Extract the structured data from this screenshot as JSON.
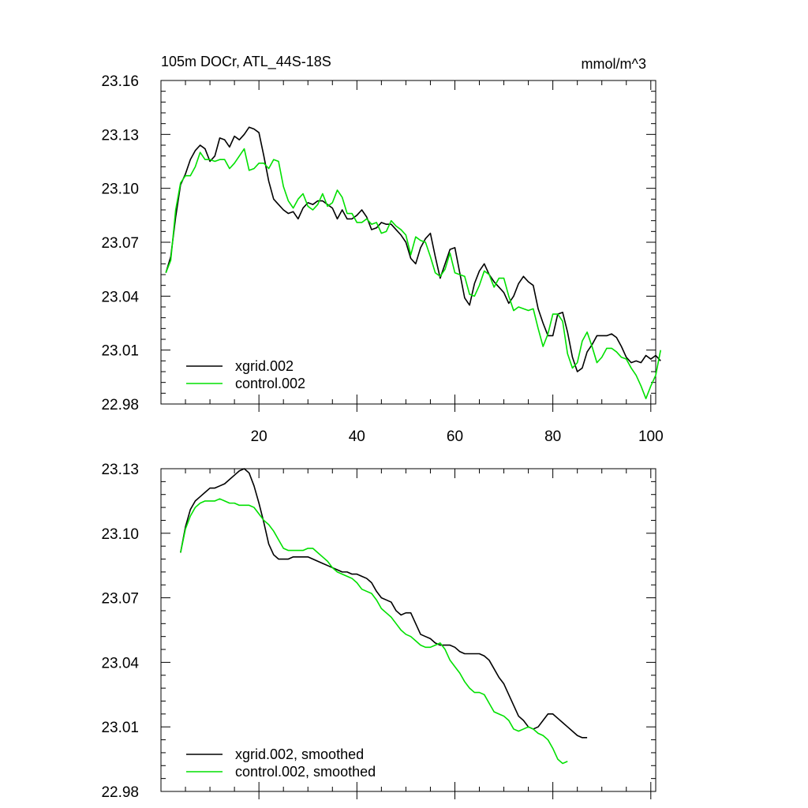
{
  "page_text": {
    "top_title_left": "105m DOCr, ATL_44S-18S",
    "top_title_right": "mmol/m^3"
  },
  "colors": {
    "series_xgrid": "#000000",
    "series_control": "#00e000",
    "axis": "#000000",
    "background": "#ffffff"
  },
  "chart_data": [
    {
      "type": "line",
      "title": "105m DOCr, ATL_44S-18S",
      "units": "mmol/m^3",
      "xlim": [
        0,
        101
      ],
      "ylim": [
        22.98,
        23.16
      ],
      "x_ticks": [
        20,
        40,
        60,
        80,
        100
      ],
      "x_tick_labels": [
        "20",
        "40",
        "60",
        "80",
        "100"
      ],
      "y_ticks": [
        22.98,
        23.01,
        23.04,
        23.07,
        23.1,
        23.13,
        23.16
      ],
      "y_tick_labels": [
        "22.98",
        "23.01",
        "23.04",
        "23.07",
        "23.10",
        "23.13",
        "23.16"
      ],
      "legend_position": "bottom-left",
      "x_start": 1,
      "series": [
        {
          "name": "xgrid.002",
          "color": "#000000",
          "values": [
            23.053,
            23.062,
            23.084,
            23.102,
            23.108,
            23.116,
            23.121,
            23.124,
            23.122,
            23.115,
            23.118,
            23.128,
            23.127,
            23.123,
            23.129,
            23.127,
            23.13,
            23.134,
            23.133,
            23.131,
            23.118,
            23.104,
            23.094,
            23.091,
            23.088,
            23.086,
            23.087,
            23.083,
            23.089,
            23.092,
            23.091,
            23.093,
            23.093,
            23.091,
            23.089,
            23.083,
            23.088,
            23.083,
            23.083,
            23.085,
            23.088,
            23.084,
            23.077,
            23.078,
            23.081,
            23.08,
            23.08,
            23.077,
            23.074,
            23.07,
            23.061,
            23.058,
            23.067,
            23.072,
            23.075,
            23.062,
            23.05,
            23.058,
            23.066,
            23.067,
            23.053,
            23.039,
            23.035,
            23.047,
            23.054,
            23.058,
            23.052,
            23.048,
            23.045,
            23.042,
            23.036,
            23.04,
            23.047,
            23.051,
            23.048,
            23.046,
            23.033,
            23.025,
            23.018,
            23.018,
            23.03,
            23.031,
            23.02,
            23.006,
            22.998,
            23.0,
            23.009,
            23.013,
            23.018,
            23.018,
            23.018,
            23.019,
            23.017,
            23.012,
            23.006,
            23.003,
            23.004,
            23.003,
            23.007,
            23.005,
            23.007,
            23.004
          ]
        },
        {
          "name": "control.002",
          "color": "#00e000",
          "values": [
            23.053,
            23.06,
            23.088,
            23.103,
            23.107,
            23.107,
            23.112,
            23.12,
            23.116,
            23.116,
            23.115,
            23.116,
            23.116,
            23.111,
            23.114,
            23.118,
            23.122,
            23.11,
            23.111,
            23.114,
            23.114,
            23.111,
            23.116,
            23.115,
            23.101,
            23.093,
            23.089,
            23.094,
            23.097,
            23.09,
            23.088,
            23.091,
            23.097,
            23.09,
            23.092,
            23.099,
            23.095,
            23.086,
            23.086,
            23.081,
            23.081,
            23.083,
            23.08,
            23.081,
            23.075,
            23.076,
            23.082,
            23.079,
            23.077,
            23.074,
            23.063,
            23.073,
            23.071,
            23.07,
            23.062,
            23.053,
            23.051,
            23.055,
            23.064,
            23.053,
            23.052,
            23.051,
            23.041,
            23.04,
            23.046,
            23.054,
            23.052,
            23.045,
            23.05,
            23.05,
            23.04,
            23.032,
            23.034,
            23.033,
            23.032,
            23.033,
            23.022,
            23.012,
            23.019,
            23.03,
            23.03,
            23.026,
            23.008,
            23.0,
            23.003,
            23.015,
            23.02,
            23.012,
            23.003,
            23.006,
            23.011,
            23.011,
            23.009,
            23.006,
            23.005,
            23.0,
            22.996,
            22.99,
            22.983,
            22.99,
            22.996,
            23.01
          ]
        }
      ]
    },
    {
      "type": "line",
      "xlim": [
        0,
        101
      ],
      "ylim": [
        22.98,
        23.13
      ],
      "x_ticks": [
        20,
        40,
        60,
        80,
        100
      ],
      "x_tick_labels": [],
      "y_ticks": [
        22.98,
        23.01,
        23.04,
        23.07,
        23.1,
        23.13
      ],
      "y_tick_labels": [
        "22.98",
        "23.01",
        "23.04",
        "23.07",
        "23.10",
        "23.13"
      ],
      "legend_position": "bottom-left",
      "x_start": 4,
      "series": [
        {
          "name": "xgrid.002, smoothed",
          "color": "#000000",
          "values": [
            23.091,
            23.103,
            23.111,
            23.115,
            23.117,
            23.119,
            23.121,
            23.121,
            23.122,
            23.123,
            23.125,
            23.127,
            23.129,
            23.13,
            23.128,
            23.122,
            23.114,
            23.105,
            23.095,
            23.09,
            23.088,
            23.088,
            23.088,
            23.089,
            23.089,
            23.089,
            23.089,
            23.088,
            23.087,
            23.086,
            23.085,
            23.084,
            23.083,
            23.082,
            23.082,
            23.081,
            23.081,
            23.08,
            23.079,
            23.077,
            23.073,
            23.07,
            23.069,
            23.068,
            23.064,
            23.062,
            23.063,
            23.063,
            23.058,
            23.053,
            23.052,
            23.051,
            23.049,
            23.048,
            23.048,
            23.048,
            23.047,
            23.045,
            23.044,
            23.044,
            23.044,
            23.044,
            23.043,
            23.041,
            23.037,
            23.033,
            23.03,
            23.025,
            23.02,
            23.015,
            23.013,
            23.01,
            23.009,
            23.01,
            23.013,
            23.016,
            23.016,
            23.014,
            23.012,
            23.01,
            23.008,
            23.006,
            23.005,
            23.005
          ]
        },
        {
          "name": "control.002, smoothed",
          "color": "#00e000",
          "values": [
            23.091,
            23.102,
            23.108,
            23.112,
            23.114,
            23.115,
            23.115,
            23.115,
            23.116,
            23.115,
            23.114,
            23.114,
            23.113,
            23.113,
            23.113,
            23.112,
            23.109,
            23.106,
            23.104,
            23.101,
            23.097,
            23.093,
            23.092,
            23.092,
            23.092,
            23.092,
            23.093,
            23.093,
            23.091,
            23.089,
            23.087,
            23.084,
            23.082,
            23.081,
            23.08,
            23.079,
            23.077,
            23.074,
            23.073,
            23.072,
            23.069,
            23.065,
            23.063,
            23.061,
            23.058,
            23.055,
            23.053,
            23.052,
            23.05,
            23.048,
            23.047,
            23.047,
            23.048,
            23.049,
            23.046,
            23.041,
            23.038,
            23.035,
            23.031,
            23.028,
            23.026,
            23.026,
            23.025,
            23.021,
            23.017,
            23.016,
            23.015,
            23.013,
            23.009,
            23.008,
            23.009,
            23.01,
            23.009,
            23.007,
            23.006,
            23.004,
            23.0,
            22.995,
            22.993,
            22.994
          ]
        }
      ]
    }
  ]
}
